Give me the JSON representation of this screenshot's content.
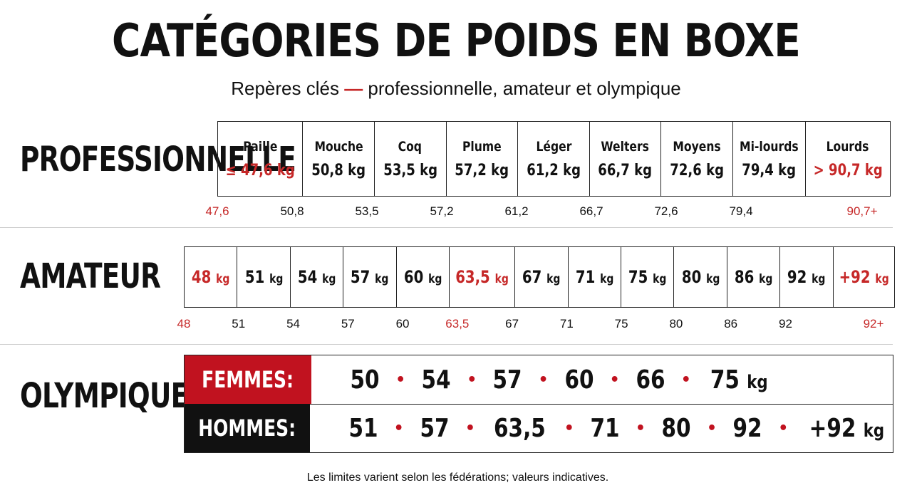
{
  "title": "CATÉGORIES DE POIDS EN BOXE",
  "subtitle": {
    "part1": "Repères clés ",
    "dash": "—",
    "part2": " professionnelle, amateur et olympique"
  },
  "colors": {
    "accent": "#c62828",
    "dark": "#111111"
  },
  "professional": {
    "label": "PROFESSIONNELLE",
    "categories": [
      {
        "name": "Paille",
        "value": "≤ 47,6 kg",
        "highlight": true
      },
      {
        "name": "Mouche",
        "value": "50,8 kg",
        "highlight": false
      },
      {
        "name": "Coq",
        "value": "53,5 kg",
        "highlight": false
      },
      {
        "name": "Plume",
        "value": "57,2 kg",
        "highlight": false
      },
      {
        "name": "Léger",
        "value": "61,2 kg",
        "highlight": false
      },
      {
        "name": "Welters",
        "value": "66,7 kg",
        "highlight": false
      },
      {
        "name": "Moyens",
        "value": "72,6 kg",
        "highlight": false
      },
      {
        "name": "Mi-lourds",
        "value": "79,4 kg",
        "highlight": false
      },
      {
        "name": "Lourds",
        "value": "> 90,7 kg",
        "highlight": true
      }
    ],
    "ticks": [
      {
        "label": "47,6",
        "highlight": true
      },
      {
        "label": "50,8",
        "highlight": false
      },
      {
        "label": "53,5",
        "highlight": false
      },
      {
        "label": "57,2",
        "highlight": false
      },
      {
        "label": "61,2",
        "highlight": false
      },
      {
        "label": "66,7",
        "highlight": false
      },
      {
        "label": "72,6",
        "highlight": false
      },
      {
        "label": "79,4",
        "highlight": false
      },
      {
        "label": "90,7+",
        "highlight": true
      }
    ]
  },
  "amateur": {
    "label": "AMATEUR",
    "categories": [
      {
        "num": "48",
        "unit": "kg",
        "highlight": true
      },
      {
        "num": "51",
        "unit": "kg",
        "highlight": false
      },
      {
        "num": "54",
        "unit": "kg",
        "highlight": false
      },
      {
        "num": "57",
        "unit": "kg",
        "highlight": false
      },
      {
        "num": "60",
        "unit": "kg",
        "highlight": false
      },
      {
        "num": "63,5",
        "unit": "kg",
        "highlight": true
      },
      {
        "num": "67",
        "unit": "kg",
        "highlight": false
      },
      {
        "num": "71",
        "unit": "kg",
        "highlight": false
      },
      {
        "num": "75",
        "unit": "kg",
        "highlight": false
      },
      {
        "num": "80",
        "unit": "kg",
        "highlight": false
      },
      {
        "num": "86",
        "unit": "kg",
        "highlight": false
      },
      {
        "num": "92",
        "unit": "kg",
        "highlight": false
      },
      {
        "num": "+92",
        "unit": "kg",
        "highlight": true
      }
    ],
    "ticks": [
      {
        "label": "48",
        "highlight": true
      },
      {
        "label": "51",
        "highlight": false
      },
      {
        "label": "54",
        "highlight": false
      },
      {
        "label": "57",
        "highlight": false
      },
      {
        "label": "60",
        "highlight": false
      },
      {
        "label": "63,5",
        "highlight": true
      },
      {
        "label": "67",
        "highlight": false
      },
      {
        "label": "71",
        "highlight": false
      },
      {
        "label": "75",
        "highlight": false
      },
      {
        "label": "80",
        "highlight": false
      },
      {
        "label": "86",
        "highlight": false
      },
      {
        "label": "92",
        "highlight": false
      },
      {
        "label": "92+",
        "highlight": true
      }
    ]
  },
  "olympic": {
    "label": "OLYMPIQUE",
    "women": {
      "label": "FEMMES:",
      "values": [
        "50",
        "54",
        "57",
        "60",
        "66",
        "75"
      ],
      "unit": "kg"
    },
    "men": {
      "label": "HOMMES:",
      "values": [
        "51",
        "57",
        "63,5",
        "71",
        "80",
        "92",
        "+92"
      ],
      "unit": "kg"
    }
  },
  "footnote": "Les limites varient selon les fédérations; valeurs indicatives."
}
